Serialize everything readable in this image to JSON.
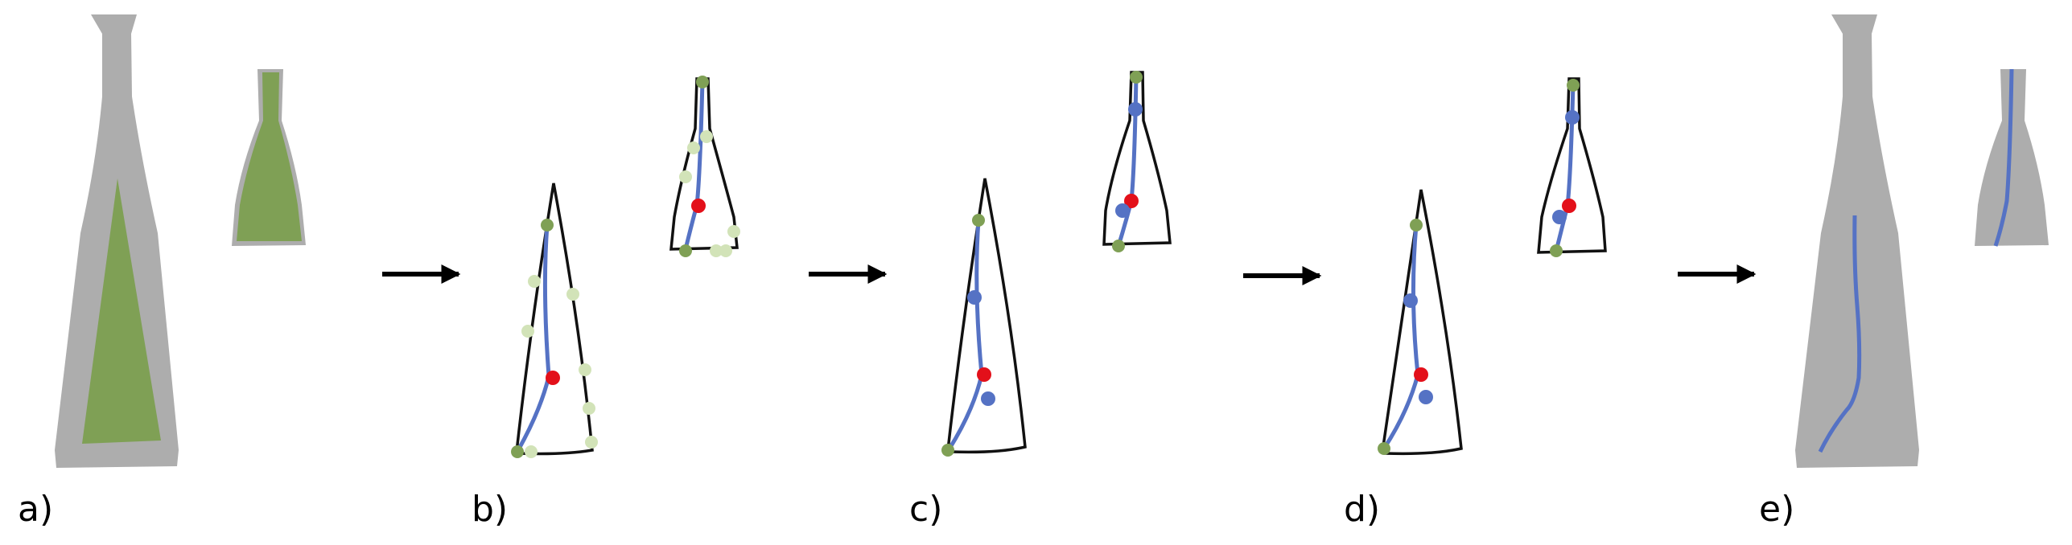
{
  "panels": [
    {
      "label": "a)"
    },
    {
      "label": "b)"
    },
    {
      "label": "c)"
    },
    {
      "label": "d)"
    },
    {
      "label": "e)"
    }
  ],
  "colors": {
    "silhouette_gray": "#adadad",
    "fill_green": "#7fa055",
    "outline": "#111111",
    "curve_blue": "#5572c4",
    "point_red": "#e3101a",
    "point_green": "#7fa055",
    "point_light_green": "#d2e3b8",
    "point_blue": "#5572c4",
    "arrow": "#000000"
  }
}
